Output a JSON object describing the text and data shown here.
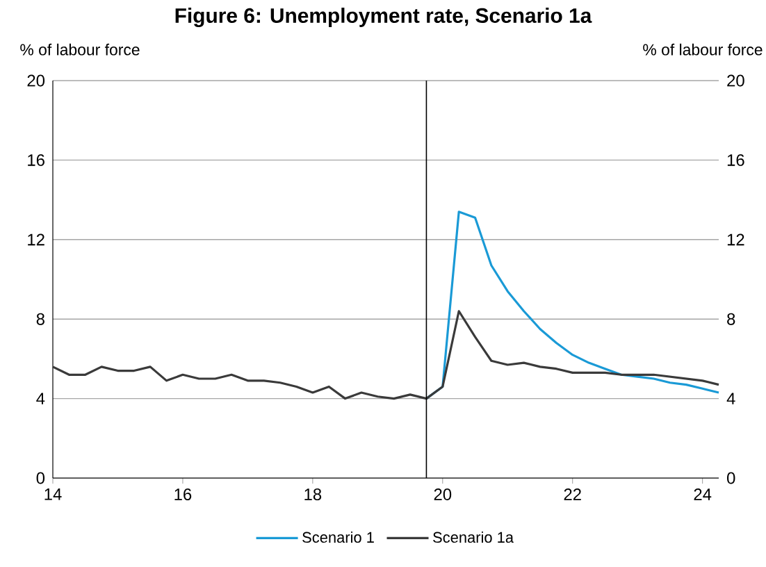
{
  "chart_data": {
    "type": "line",
    "title": "Figure 6: Unemployment rate, Scenario 1a",
    "ylabel": "% of labour force",
    "y2label": "% of labour force",
    "x": [
      14,
      14.25,
      14.5,
      14.75,
      15,
      15.25,
      15.5,
      15.75,
      16,
      16.25,
      16.5,
      16.75,
      17,
      17.25,
      17.5,
      17.75,
      18,
      18.25,
      18.5,
      18.75,
      19,
      19.25,
      19.5,
      19.75,
      20,
      20.25,
      20.5,
      20.75,
      21,
      21.25,
      21.5,
      21.75,
      22,
      22.25,
      22.5,
      22.75,
      23,
      23.25,
      23.5,
      23.75,
      24,
      24.25
    ],
    "series": [
      {
        "name": "Scenario 1",
        "color": "#1a9ad6",
        "values": [
          null,
          null,
          null,
          null,
          null,
          null,
          null,
          null,
          null,
          null,
          null,
          null,
          null,
          null,
          null,
          null,
          null,
          null,
          null,
          null,
          null,
          null,
          null,
          4.0,
          4.6,
          13.4,
          13.1,
          10.7,
          9.4,
          8.4,
          7.5,
          6.8,
          6.2,
          5.8,
          5.5,
          5.2,
          5.1,
          5.0,
          4.8,
          4.7,
          4.5,
          4.3
        ]
      },
      {
        "name": "Scenario 1a",
        "color": "#3a3a3a",
        "values": [
          5.6,
          5.2,
          5.2,
          5.6,
          5.4,
          5.4,
          5.6,
          4.9,
          5.2,
          5.0,
          5.0,
          5.2,
          4.9,
          4.9,
          4.8,
          4.6,
          4.3,
          4.6,
          4.0,
          4.3,
          4.1,
          4.0,
          4.2,
          4.0,
          4.6,
          8.4,
          7.1,
          5.9,
          5.7,
          5.8,
          5.6,
          5.5,
          5.3,
          5.3,
          5.3,
          5.2,
          5.2,
          5.2,
          5.1,
          5.0,
          4.9,
          4.7
        ]
      }
    ],
    "xlim": [
      14,
      24.25
    ],
    "xticks": [
      14,
      16,
      18,
      20,
      22,
      24
    ],
    "ylim": [
      0,
      20
    ],
    "yticks": [
      0,
      4,
      8,
      12,
      16,
      20
    ],
    "y2lim": [
      0,
      20
    ],
    "y2ticks": [
      0,
      4,
      8,
      12,
      16,
      20
    ],
    "ref_lines": [
      {
        "axis": "x",
        "value": 19.75,
        "color": "#000000"
      }
    ],
    "grid": "y",
    "legend": "bottom",
    "marker": "none",
    "line_style": "solid"
  }
}
